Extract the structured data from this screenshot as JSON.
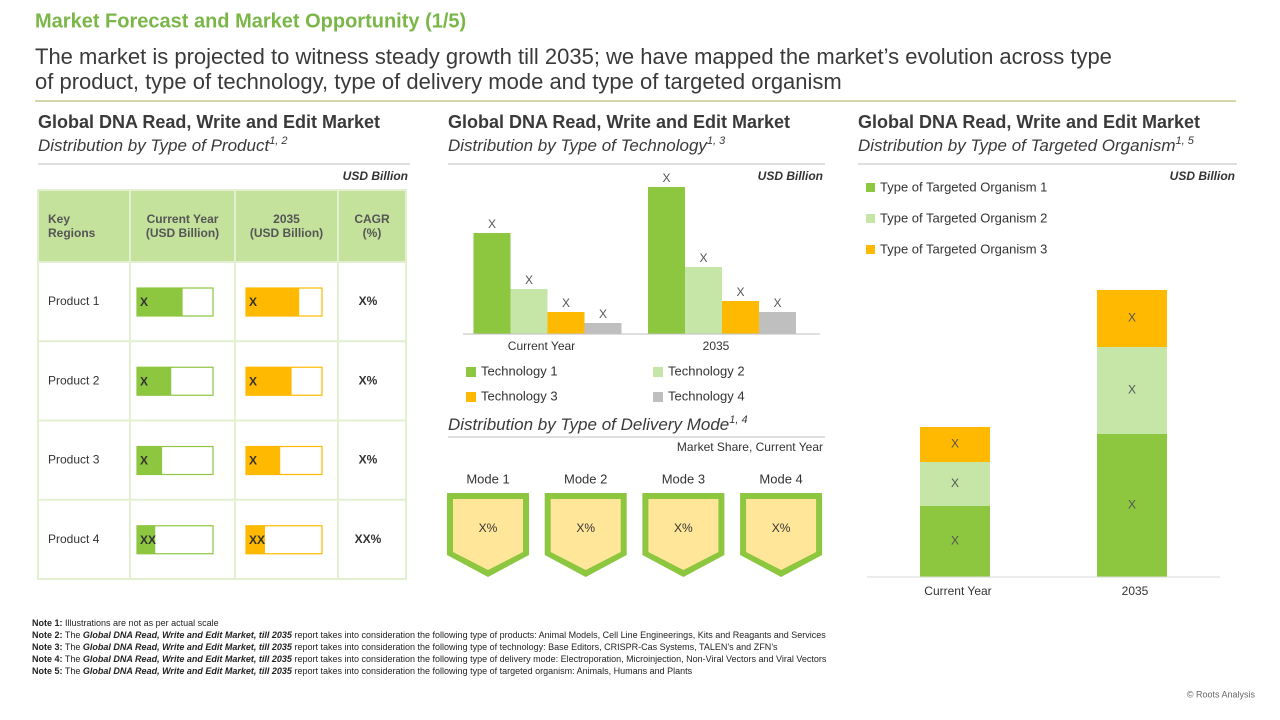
{
  "header": {
    "title": "Market Forecast and Market Opportunity (1/5)",
    "subtitle": [
      "The market is projected to witness steady growth till 2035; we have mapped the market’s evolution across type",
      "of product, type of technology, type of delivery mode and type of targeted organism"
    ]
  },
  "panels": [
    {
      "title": "Global DNA Read, Write and Edit Market",
      "subtitle": "Distribution by Type of Product",
      "note_ref": "1, 2",
      "unit": "USD Billion"
    },
    {
      "title": "Global DNA Read, Write and Edit Market",
      "subtitle": "Distribution by Type of Technology",
      "note_ref": "1, 3",
      "unit": "USD Billion"
    },
    {
      "title": "Global DNA Read, Write and Edit Market",
      "subtitle": "Distribution by Type of Targeted Organism",
      "note_ref": "1, 5",
      "unit": "USD Billion"
    }
  ],
  "table": {
    "columns": [
      [
        "Key",
        "Regions"
      ],
      [
        "Current Year",
        "(USD Billion)"
      ],
      [
        "2035",
        "(USD Billion)"
      ],
      [
        "CAGR",
        "(%)"
      ]
    ],
    "rows": [
      {
        "label": "Product 1",
        "current": {
          "label": "X",
          "fill": 60
        },
        "future": {
          "label": "X",
          "fill": 70
        },
        "cagr": "X%"
      },
      {
        "label": "Product 2",
        "current": {
          "label": "X",
          "fill": 45
        },
        "future": {
          "label": "X",
          "fill": 60
        },
        "cagr": "X%"
      },
      {
        "label": "Product 3",
        "current": {
          "label": "X",
          "fill": 33
        },
        "future": {
          "label": "X",
          "fill": 45
        },
        "cagr": "X%"
      },
      {
        "label": "Product 4",
        "current": {
          "label": "XX",
          "fill": 24
        },
        "future": {
          "label": "XX",
          "fill": 25
        },
        "cagr": "XX%"
      }
    ]
  },
  "chart_data": [
    {
      "type": "bar",
      "categories": [
        "Current Year",
        "2035"
      ],
      "ylim": [
        0,
        150
      ],
      "series": [
        {
          "name": "Technology 1",
          "color": "#8dc63f",
          "values": [
            101,
            147
          ],
          "value_labels": [
            "X",
            "X"
          ]
        },
        {
          "name": "Technology 2",
          "color": "#c6e6a8",
          "values": [
            45,
            67
          ],
          "value_labels": [
            "X",
            "X"
          ]
        },
        {
          "name": "Technology 3",
          "color": "#ffb900",
          "values": [
            22,
            33
          ],
          "value_labels": [
            "X",
            "X"
          ]
        },
        {
          "name": "Technology 4",
          "color": "#bfbfbf",
          "values": [
            11,
            22
          ],
          "value_labels": [
            "X",
            "X"
          ]
        }
      ]
    },
    {
      "type": "stacked_bar",
      "categories": [
        "Current Year",
        "2035"
      ],
      "ylim": [
        0,
        300
      ],
      "series": [
        {
          "name": "Type of Targeted Organism 1",
          "color": "#8dc63f",
          "values": [
            71,
            143
          ],
          "value_labels": [
            "X",
            "X"
          ]
        },
        {
          "name": "Type of Targeted Organism 2",
          "color": "#c6e6a8",
          "values": [
            44,
            87
          ],
          "value_labels": [
            "X",
            "X"
          ]
        },
        {
          "name": "Type of Targeted Organism 3",
          "color": "#ffb900",
          "values": [
            35,
            57
          ],
          "value_labels": [
            "X",
            "X"
          ]
        }
      ]
    }
  ],
  "delivery": {
    "title": "Distribution by Type of Delivery Mode",
    "note_ref": "1, 4",
    "caption": "Market Share, Current Year",
    "modes": [
      {
        "name": "Mode 1",
        "value_label": "X%"
      },
      {
        "name": "Mode 2",
        "value_label": "X%"
      },
      {
        "name": "Mode 3",
        "value_label": "X%"
      },
      {
        "name": "Mode 4",
        "value_label": "X%"
      }
    ]
  },
  "notes": [
    {
      "label": "Note 1:",
      "text": "Illustrations are not as per actual scale"
    },
    {
      "label": "Note 2:",
      "pre": "The",
      "report": "Global DNA Read, Write and Edit Market, till 2035",
      "text": "report takes into consideration the following type of products: Animal Models, Cell Line Engineerings, Kits and Reagants and Services"
    },
    {
      "label": "Note 3:",
      "pre": "The",
      "report": "Global DNA Read, Write and Edit Market, till 2035",
      "text": "report takes into consideration the following type of technology: Base Editors, CRISPR-Cas Systems, TALEN’s and ZFN’s"
    },
    {
      "label": "Note 4:",
      "pre": "The",
      "report": "Global DNA Read, Write and Edit Market, till 2035",
      "text": "report takes into consideration the following type of delivery mode: Electroporation, Microinjection, Non-Viral Vectors and Viral Vectors"
    },
    {
      "label": "Note 5:",
      "pre": "The",
      "report": "Global DNA Read, Write and Edit Market, till 2035",
      "text": "report takes into consideration the following type of targeted organism: Animals, Humans and Plants"
    }
  ],
  "footer": "© Roots Analysis"
}
